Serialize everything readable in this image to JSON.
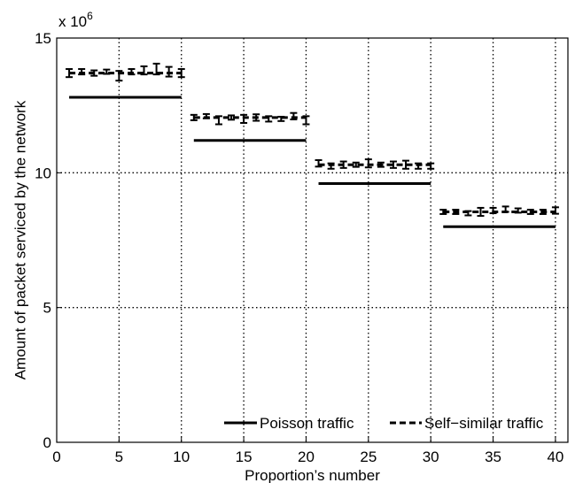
{
  "chart_data": {
    "type": "line",
    "title": "",
    "xlabel": "Proportion’s number",
    "ylabel": "Amount of packet serviced by the network",
    "y_multiplier_base": "x 10",
    "y_multiplier_exp": "6",
    "xlim": [
      0,
      41
    ],
    "ylim": [
      0,
      15
    ],
    "xticks": [
      0,
      5,
      10,
      15,
      20,
      25,
      30,
      35,
      40
    ],
    "yticks": [
      0,
      5,
      10,
      15
    ],
    "grid": "dotted",
    "legend_position": "bottom-right",
    "series": [
      {
        "name": "Poisson traffic",
        "style": "solid",
        "segments": [
          {
            "x": [
              1,
              10
            ],
            "y": 12.8
          },
          {
            "x": [
              11,
              20
            ],
            "y": 11.2
          },
          {
            "x": [
              21,
              30
            ],
            "y": 9.6
          },
          {
            "x": [
              31,
              40
            ],
            "y": 8.0
          }
        ]
      },
      {
        "name": "Self−similar traffic",
        "style": "dashed",
        "segments": [
          {
            "x": [
              1,
              10
            ],
            "y": 13.7
          },
          {
            "x": [
              11,
              20
            ],
            "y": 12.05
          },
          {
            "x": [
              21,
              30
            ],
            "y": 10.3
          },
          {
            "x": [
              31,
              40
            ],
            "y": 8.55
          }
        ],
        "points": [
          {
            "x": 1,
            "y": 13.7,
            "err": 0.15
          },
          {
            "x": 2,
            "y": 13.75,
            "err": 0.1
          },
          {
            "x": 3,
            "y": 13.7,
            "err": 0.1
          },
          {
            "x": 4,
            "y": 13.75,
            "err": 0.08
          },
          {
            "x": 5,
            "y": 13.6,
            "err": 0.18
          },
          {
            "x": 6,
            "y": 13.75,
            "err": 0.1
          },
          {
            "x": 7,
            "y": 13.8,
            "err": 0.15
          },
          {
            "x": 8,
            "y": 13.85,
            "err": 0.2
          },
          {
            "x": 9,
            "y": 13.75,
            "err": 0.18
          },
          {
            "x": 10,
            "y": 13.7,
            "err": 0.15
          },
          {
            "x": 11,
            "y": 12.05,
            "err": 0.1
          },
          {
            "x": 12,
            "y": 12.1,
            "err": 0.08
          },
          {
            "x": 13,
            "y": 11.95,
            "err": 0.15
          },
          {
            "x": 14,
            "y": 12.05,
            "err": 0.08
          },
          {
            "x": 15,
            "y": 12.0,
            "err": 0.15
          },
          {
            "x": 16,
            "y": 12.05,
            "err": 0.12
          },
          {
            "x": 17,
            "y": 12.0,
            "err": 0.1
          },
          {
            "x": 18,
            "y": 12.0,
            "err": 0.08
          },
          {
            "x": 19,
            "y": 12.1,
            "err": 0.12
          },
          {
            "x": 20,
            "y": 11.95,
            "err": 0.15
          },
          {
            "x": 21,
            "y": 10.35,
            "err": 0.12
          },
          {
            "x": 22,
            "y": 10.25,
            "err": 0.1
          },
          {
            "x": 23,
            "y": 10.3,
            "err": 0.12
          },
          {
            "x": 24,
            "y": 10.3,
            "err": 0.08
          },
          {
            "x": 25,
            "y": 10.35,
            "err": 0.15
          },
          {
            "x": 26,
            "y": 10.3,
            "err": 0.08
          },
          {
            "x": 27,
            "y": 10.3,
            "err": 0.12
          },
          {
            "x": 28,
            "y": 10.3,
            "err": 0.15
          },
          {
            "x": 29,
            "y": 10.25,
            "err": 0.1
          },
          {
            "x": 30,
            "y": 10.25,
            "err": 0.1
          },
          {
            "x": 31,
            "y": 8.55,
            "err": 0.08
          },
          {
            "x": 32,
            "y": 8.55,
            "err": 0.08
          },
          {
            "x": 33,
            "y": 8.5,
            "err": 0.08
          },
          {
            "x": 34,
            "y": 8.55,
            "err": 0.15
          },
          {
            "x": 35,
            "y": 8.6,
            "err": 0.1
          },
          {
            "x": 36,
            "y": 8.65,
            "err": 0.1
          },
          {
            "x": 37,
            "y": 8.6,
            "err": 0.08
          },
          {
            "x": 38,
            "y": 8.55,
            "err": 0.08
          },
          {
            "x": 39,
            "y": 8.55,
            "err": 0.08
          },
          {
            "x": 40,
            "y": 8.6,
            "err": 0.12
          }
        ]
      }
    ]
  }
}
